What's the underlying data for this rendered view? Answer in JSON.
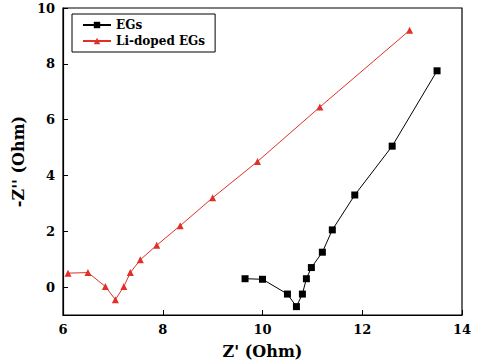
{
  "chart_data": {
    "type": "line",
    "x_label": "Z' (Ohm)",
    "y_label": "-Z'' (Ohm)",
    "xlim": [
      6,
      14
    ],
    "xticks": [
      6,
      8,
      10,
      12,
      14
    ],
    "ylim": [
      -1,
      10
    ],
    "yticks": [
      0,
      2,
      4,
      6,
      8,
      10
    ],
    "grid": false,
    "legend": "upper left",
    "series": [
      {
        "name": "EGs",
        "color": "#000000",
        "marker": "square",
        "line_style": "solid",
        "x": [
          9.65,
          10.0,
          10.5,
          10.68,
          10.8,
          10.88,
          10.98,
          11.2,
          11.4,
          11.85,
          12.6,
          13.5
        ],
        "values": [
          0.3,
          0.28,
          -0.25,
          -0.7,
          -0.25,
          0.3,
          0.7,
          1.25,
          2.05,
          3.3,
          5.05,
          7.75
        ]
      },
      {
        "name": "Li-doped EGs",
        "color": "#e0302a",
        "marker": "triangle",
        "line_style": "solid",
        "x": [
          6.1,
          6.5,
          6.85,
          7.05,
          7.22,
          7.35,
          7.55,
          7.88,
          8.35,
          9.0,
          9.9,
          11.15,
          12.95
        ],
        "values": [
          0.5,
          0.52,
          0.02,
          -0.45,
          0.02,
          0.52,
          0.98,
          1.5,
          2.2,
          3.2,
          4.5,
          6.45,
          9.2
        ]
      }
    ]
  }
}
